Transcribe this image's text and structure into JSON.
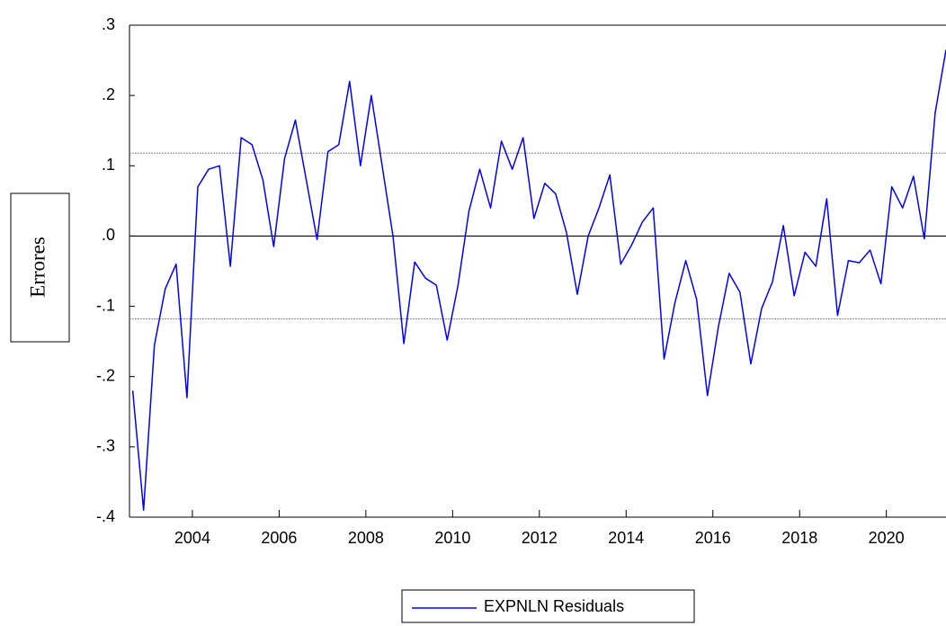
{
  "chart_data": {
    "type": "line",
    "y_label": "Errores",
    "x": [
      2002.625,
      2002.875,
      2003.125,
      2003.375,
      2003.625,
      2003.875,
      2004.125,
      2004.375,
      2004.625,
      2004.875,
      2005.125,
      2005.375,
      2005.625,
      2005.875,
      2006.125,
      2006.375,
      2006.625,
      2006.875,
      2007.125,
      2007.375,
      2007.625,
      2007.875,
      2008.125,
      2008.375,
      2008.625,
      2008.875,
      2009.125,
      2009.375,
      2009.625,
      2009.875,
      2010.125,
      2010.375,
      2010.625,
      2010.875,
      2011.125,
      2011.375,
      2011.625,
      2011.875,
      2012.125,
      2012.375,
      2012.625,
      2012.875,
      2013.125,
      2013.375,
      2013.625,
      2013.875,
      2014.125,
      2014.375,
      2014.625,
      2014.875,
      2015.125,
      2015.375,
      2015.625,
      2015.875,
      2016.125,
      2016.375,
      2016.625,
      2016.875,
      2017.125,
      2017.375,
      2017.625,
      2017.875,
      2018.125,
      2018.375,
      2018.625,
      2018.875,
      2019.125,
      2019.375,
      2019.625,
      2019.875,
      2020.125,
      2020.375,
      2020.625,
      2020.875,
      2021.125,
      2021.375
    ],
    "series": [
      {
        "name": "EXPNLN Residuals",
        "color": "#0000ff",
        "values": [
          -0.22,
          -0.39,
          -0.155,
          -0.075,
          -0.04,
          -0.23,
          0.07,
          0.095,
          0.1,
          -0.043,
          0.14,
          0.13,
          0.08,
          -0.015,
          0.11,
          0.165,
          0.08,
          -0.005,
          0.12,
          0.13,
          0.22,
          0.1,
          0.2,
          0.1,
          0.0,
          -0.153,
          -0.037,
          -0.06,
          -0.07,
          -0.148,
          -0.07,
          0.035,
          0.095,
          0.04,
          0.135,
          0.095,
          0.14,
          0.025,
          0.075,
          0.06,
          0.005,
          -0.083,
          0.0,
          0.04,
          0.087,
          -0.04,
          -0.013,
          0.02,
          0.04,
          -0.175,
          -0.095,
          -0.035,
          -0.09,
          -0.227,
          -0.13,
          -0.053,
          -0.08,
          -0.182,
          -0.103,
          -0.065,
          0.015,
          -0.085,
          -0.023,
          -0.043,
          0.053,
          -0.113,
          -0.035,
          -0.038,
          -0.02,
          -0.068,
          0.07,
          0.04,
          0.085,
          -0.004,
          0.175,
          0.265
        ]
      }
    ],
    "xlim": [
      2002.55,
      2021.375
    ],
    "xticks": [
      2004,
      2006,
      2008,
      2010,
      2012,
      2014,
      2016,
      2018,
      2020
    ],
    "ylim": [
      -0.4,
      0.3
    ],
    "yticks": [
      {
        "value": -0.4,
        "label": "-.4"
      },
      {
        "value": -0.3,
        "label": "-.3"
      },
      {
        "value": -0.2,
        "label": "-.2"
      },
      {
        "value": -0.1,
        "label": "-.1"
      },
      {
        "value": 0,
        "label": ".0"
      },
      {
        "value": 0.1,
        "label": ".1"
      },
      {
        "value": 0.2,
        "label": ".2"
      },
      {
        "value": 0.3,
        "label": ".3"
      }
    ],
    "band_lines": [
      0.118,
      -0.118
    ],
    "zero_line": true,
    "legend": "bottom"
  }
}
